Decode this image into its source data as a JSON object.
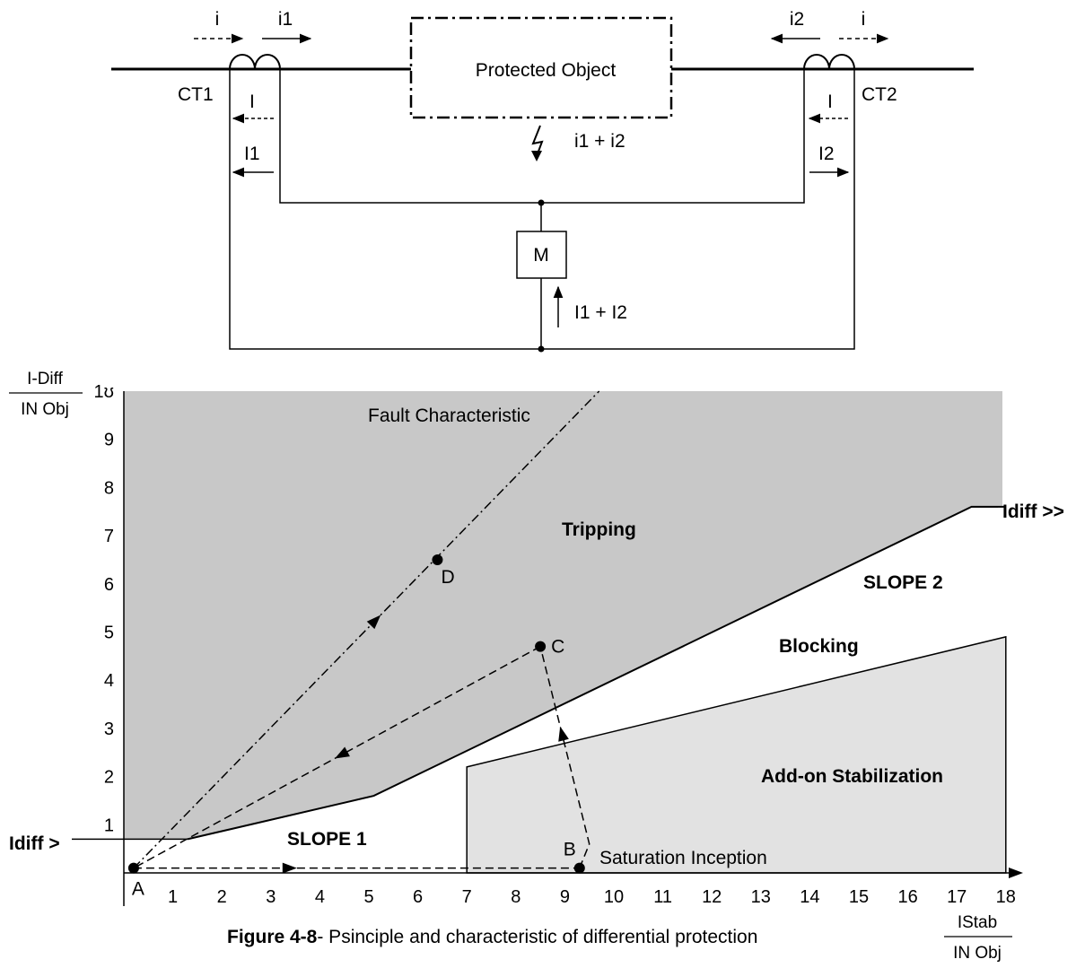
{
  "circuit": {
    "protected_object": "Protected Object",
    "ct1": "CT1",
    "ct2": "CT2",
    "i_left": "i",
    "i1_top": "i1",
    "i2_top": "i2",
    "i_right": "i",
    "sec_i_left": "I",
    "sec_i_right": "I",
    "sec_I1": "I1",
    "sec_I2": "I2",
    "fault_current": "i1 + i2",
    "meter": "M",
    "meter_current": "I1 + I2"
  },
  "chart_data": {
    "type": "area",
    "xlabel_num": "IStab",
    "xlabel_den": "IN Obj",
    "ylabel_num": "I-Diff",
    "ylabel_den": "IN Obj",
    "xlim": [
      0,
      18.5
    ],
    "ylim": [
      0,
      10
    ],
    "x_ticks": [
      "1",
      "2",
      "3",
      "4",
      "5",
      "6",
      "7",
      "8",
      "9",
      "10",
      "11",
      "12",
      "13",
      "14",
      "15",
      "16",
      "17",
      "18"
    ],
    "y_ticks": [
      "1",
      "2",
      "3",
      "4",
      "5",
      "6",
      "7",
      "8",
      "9",
      "10"
    ],
    "y_top_tick_display": "1ʊ",
    "tripping_boundary": [
      [
        0,
        0.7
      ],
      [
        1.3,
        0.7
      ],
      [
        5.1,
        1.6
      ],
      [
        17.3,
        7.6
      ],
      [
        18,
        7.6
      ]
    ],
    "addon_region": [
      [
        7.0,
        0
      ],
      [
        7.0,
        2.2
      ],
      [
        18,
        4.9
      ],
      [
        18,
        0
      ]
    ],
    "fault_characteristic": [
      [
        0.2,
        0.1
      ],
      [
        9.7,
        10
      ]
    ],
    "path_A_B": [
      [
        0.2,
        0.1
      ],
      [
        9.3,
        0.1
      ]
    ],
    "path_B_C": [
      [
        9.3,
        0.1
      ],
      [
        9.5,
        0.6
      ],
      [
        8.5,
        4.7
      ]
    ],
    "path_C_A": [
      [
        8.5,
        4.7
      ],
      [
        0.2,
        0.1
      ]
    ],
    "points": [
      {
        "label": "A",
        "x": 0.2,
        "y": 0.1
      },
      {
        "label": "B",
        "x": 9.3,
        "y": 0.1
      },
      {
        "label": "C",
        "x": 8.5,
        "y": 4.7
      },
      {
        "label": "D",
        "x": 6.4,
        "y": 6.5
      }
    ],
    "annotations": {
      "fault": "Fault Characteristic",
      "tripping": "Tripping",
      "blocking": "Blocking",
      "slope1": "SLOPE 1",
      "slope2": "SLOPE 2",
      "addon": "Add-on Stabilization",
      "saturation": "Saturation Inception",
      "idiff_low": "Idiff >",
      "idiff_high": "Idiff >>"
    },
    "colors": {
      "tripping": "#c8c8c8",
      "addon": "#e2e2e2"
    }
  },
  "caption": {
    "bold": "Figure 4-8",
    "rest": "- Psinciple and characteristic of differential protection"
  }
}
